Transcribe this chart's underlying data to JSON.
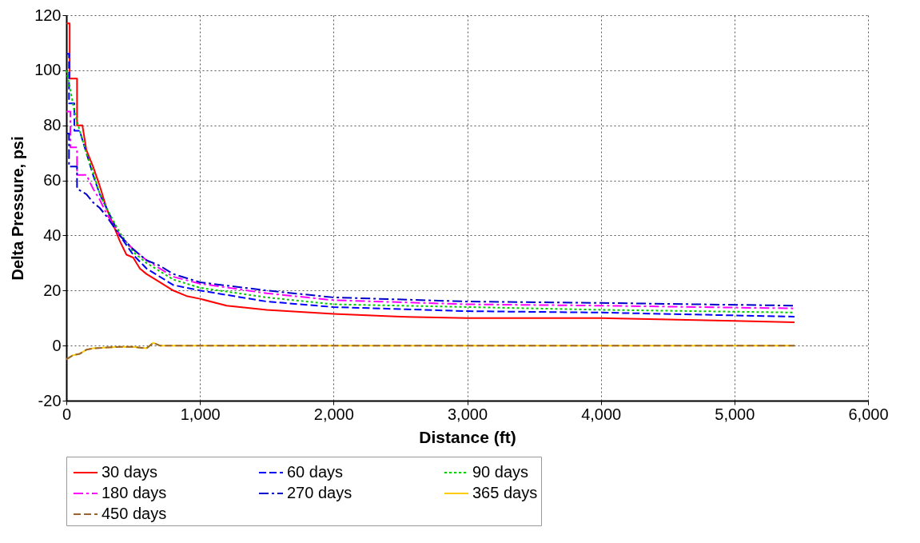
{
  "chart_data": {
    "type": "line",
    "xlabel": "Distance (ft)",
    "ylabel": "Delta Pressure, psi",
    "xlim": [
      0,
      6000
    ],
    "ylim": [
      -20,
      120
    ],
    "xticks": [
      {
        "value": 0,
        "label": "0"
      },
      {
        "value": 1000,
        "label": "1,000"
      },
      {
        "value": 2000,
        "label": "2,000"
      },
      {
        "value": 3000,
        "label": "3,000"
      },
      {
        "value": 4000,
        "label": "4,000"
      },
      {
        "value": 5000,
        "label": "5,000"
      },
      {
        "value": 6000,
        "label": "6,000"
      }
    ],
    "yticks": [
      -20,
      0,
      20,
      40,
      60,
      80,
      100,
      120
    ],
    "grid": true,
    "legend": "bottom",
    "marker": "none",
    "series": [
      {
        "name": "30   days",
        "color": "#ff0000",
        "line_style": "solid",
        "x": [
          0,
          25,
          25,
          80,
          80,
          120,
          150,
          200,
          250,
          300,
          350,
          400,
          450,
          500,
          550,
          600,
          700,
          800,
          900,
          1000,
          1200,
          1500,
          2000,
          2500,
          3000,
          4000,
          4500,
          5000,
          5450
        ],
        "values": [
          117,
          117,
          97,
          97,
          80,
          80,
          71,
          65,
          58,
          50,
          44,
          38,
          33,
          32,
          28,
          26,
          23,
          20,
          18,
          17,
          14.5,
          13,
          11.5,
          10.5,
          10,
          10,
          9.5,
          9,
          8.5
        ]
      },
      {
        "name": "60 days",
        "color": "#0000ff",
        "line_style": "dashed",
        "x": [
          0,
          20,
          20,
          60,
          60,
          100,
          150,
          200,
          250,
          300,
          400,
          500,
          600,
          800,
          1000,
          1500,
          2000,
          3000,
          4000,
          5450
        ],
        "values": [
          106,
          106,
          88,
          88,
          78,
          78,
          70,
          62,
          55,
          50,
          40,
          33,
          28,
          22,
          20,
          16,
          14,
          12.5,
          12,
          10.5
        ]
      },
      {
        "name": "90 days",
        "color": "#00cc00",
        "line_style": "dotted",
        "x": [
          0,
          30,
          60,
          100,
          150,
          200,
          250,
          300,
          400,
          500,
          600,
          800,
          1000,
          1500,
          2000,
          3000,
          4000,
          5450
        ],
        "values": [
          100,
          93,
          85,
          78,
          70,
          63,
          55,
          50,
          41,
          34,
          30,
          24,
          21,
          17.5,
          15,
          14,
          13,
          12
        ]
      },
      {
        "name": "180 days",
        "color": "#ff00ff",
        "line_style": "dashdot",
        "x": [
          0,
          30,
          30,
          80,
          80,
          150,
          200,
          250,
          300,
          400,
          500,
          600,
          800,
          1000,
          1500,
          2000,
          3000,
          4000,
          5450
        ],
        "values": [
          85,
          85,
          72,
          72,
          62,
          62,
          57,
          53,
          48,
          40,
          35,
          31,
          25,
          22.5,
          19,
          16.5,
          15,
          14.5,
          13.5
        ]
      },
      {
        "name": "270 days",
        "color": "#0000cc",
        "line_style": "dashdot",
        "x": [
          0,
          20,
          20,
          80,
          80,
          150,
          200,
          250,
          300,
          400,
          500,
          600,
          700,
          800,
          1000,
          1500,
          2000,
          3000,
          4000,
          5450
        ],
        "values": [
          77,
          77,
          65,
          65,
          57,
          55,
          52,
          50,
          47,
          40,
          35,
          31,
          29,
          26,
          23,
          20,
          17.5,
          16,
          15.5,
          14.5
        ]
      },
      {
        "name": "365 days",
        "color": "#ffcc00",
        "line_style": "solid",
        "x": [
          0,
          50,
          100,
          150,
          200,
          300,
          400,
          500,
          600,
          650,
          700,
          1000,
          5450
        ],
        "values": [
          -5,
          -3.5,
          -3,
          -1.5,
          -1,
          -0.7,
          -0.5,
          -0.5,
          -1,
          1,
          0,
          0,
          0
        ]
      },
      {
        "name": "450 days",
        "color": "#996633",
        "line_style": "dashed",
        "x": [
          0,
          50,
          100,
          150,
          200,
          300,
          400,
          500,
          600,
          650,
          700,
          1000,
          5450
        ],
        "values": [
          -5,
          -3.5,
          -3,
          -1.5,
          -1,
          -0.7,
          -0.5,
          -0.5,
          -1,
          1,
          0,
          0,
          0
        ]
      }
    ]
  }
}
